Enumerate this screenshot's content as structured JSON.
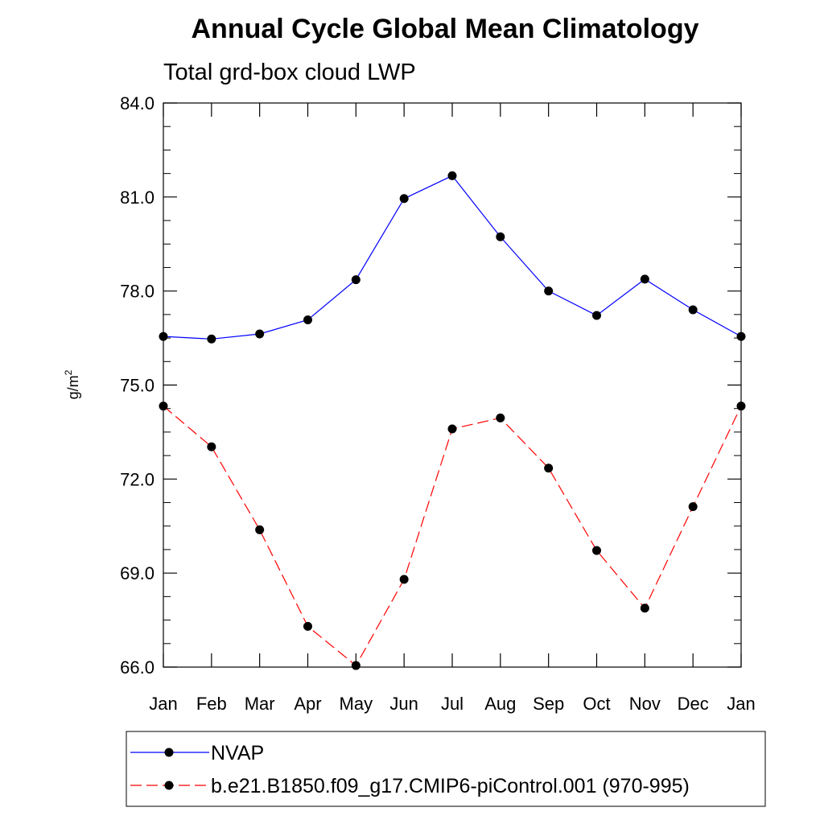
{
  "chart_data": {
    "type": "line",
    "title": "Annual Cycle Global Mean Climatology",
    "subtitle": "Total grd-box cloud LWP",
    "xlabel": "",
    "ylabel": "g/m",
    "ylabel_superscript": "2",
    "categories": [
      "Jan",
      "Feb",
      "Mar",
      "Apr",
      "May",
      "Jun",
      "Jul",
      "Aug",
      "Sep",
      "Oct",
      "Nov",
      "Dec",
      "Jan"
    ],
    "ylim": [
      66.0,
      84.0
    ],
    "yticks": [
      "66.0",
      "69.0",
      "72.0",
      "75.0",
      "78.0",
      "81.0",
      "84.0"
    ],
    "grid": false,
    "legend_position": "bottom",
    "series": [
      {
        "name": "NVAP",
        "color": "#0000ff",
        "line_style": "solid",
        "marker": "filled-circle",
        "values": [
          76.55,
          76.47,
          76.63,
          77.08,
          78.36,
          80.95,
          81.68,
          79.73,
          78.0,
          77.22,
          78.38,
          77.4,
          76.55
        ]
      },
      {
        "name": "b.e21.B1850.f09_g17.CMIP6-piControl.001 (970-995)",
        "color": "#ff0000",
        "line_style": "dashed",
        "marker": "filled-circle",
        "values": [
          74.33,
          73.03,
          70.38,
          67.3,
          66.05,
          68.8,
          73.6,
          73.95,
          72.35,
          69.72,
          67.88,
          71.12,
          74.33
        ]
      }
    ]
  }
}
